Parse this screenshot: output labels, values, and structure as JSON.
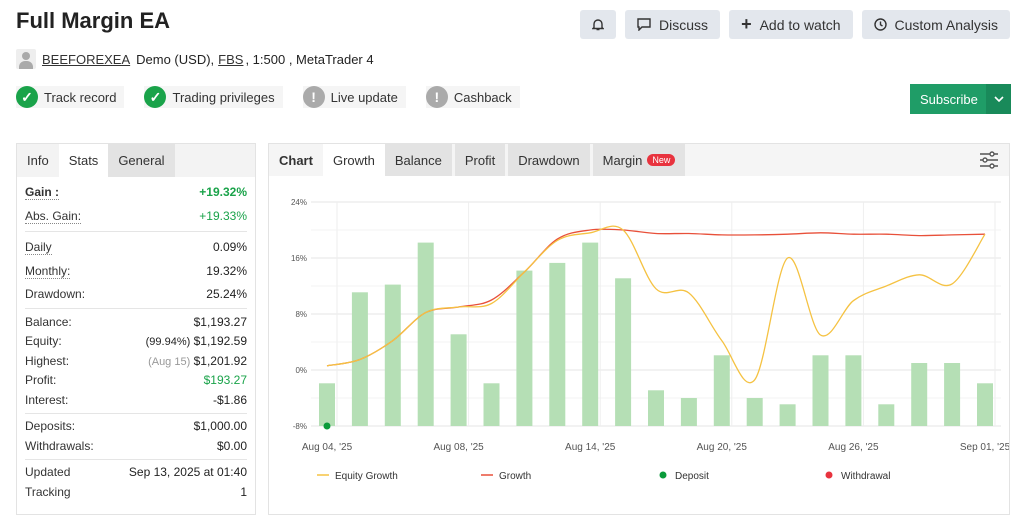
{
  "header": {
    "title": "Full Margin EA",
    "user": "BEEFOREXEA",
    "account_prefix": "Demo (USD),",
    "broker": "FBS",
    "account_suffix": ", 1:500 , MetaTrader 4"
  },
  "badges": [
    {
      "label": "Track record",
      "status": "ok"
    },
    {
      "label": "Trading privileges",
      "status": "ok"
    },
    {
      "label": "Live update",
      "status": "warn"
    },
    {
      "label": "Cashback",
      "status": "warn"
    }
  ],
  "buttons": {
    "discuss": "Discuss",
    "watch": "Add to watch",
    "analysis": "Custom Analysis",
    "subscribe": "Subscribe"
  },
  "left_tabs": [
    "Info",
    "Stats",
    "General"
  ],
  "stats": {
    "gain": {
      "label": "Gain :",
      "value": "+19.32%"
    },
    "abs_gain": {
      "label": "Abs. Gain:",
      "value": "+19.33%"
    },
    "daily": {
      "label": "Daily",
      "value": "0.09%"
    },
    "monthly": {
      "label": "Monthly:",
      "value": "19.32%"
    },
    "drawdown": {
      "label": "Drawdown:",
      "value": "25.24%"
    },
    "balance": {
      "label": "Balance:",
      "value": "$1,193.27"
    },
    "equity": {
      "label": "Equity:",
      "note": "(99.94%)",
      "value": "$1,192.59"
    },
    "highest": {
      "label": "Highest:",
      "note": "(Aug 15)",
      "value": "$1,201.92"
    },
    "profit": {
      "label": "Profit:",
      "value": "$193.27"
    },
    "interest": {
      "label": "Interest:",
      "value": "-$1.86"
    },
    "deposits": {
      "label": "Deposits:",
      "value": "$1,000.00"
    },
    "withdrawals": {
      "label": "Withdrawals:",
      "value": "$0.00"
    },
    "updated": {
      "label": "Updated",
      "value": "Sep 13, 2025 at 01:40"
    },
    "tracking": {
      "label": "Tracking",
      "value": "1"
    }
  },
  "chart_tabs": [
    "Chart",
    "Growth",
    "Balance",
    "Profit",
    "Drawdown",
    "Margin"
  ],
  "chart_tab_badge": "New",
  "colors": {
    "accent": "#1f9d67",
    "positive": "#1aa34a",
    "equity": "#f5c242",
    "growth": "#e8503a",
    "bars": "#b5dfb5",
    "deposit": "#0a9b3a",
    "withdrawal": "#e8333e"
  },
  "chart_data": {
    "type": "bar+line",
    "categories": [
      "Aug 04",
      "Aug 05",
      "Aug 06",
      "Aug 07",
      "Aug 08",
      "Aug 11",
      "Aug 12",
      "Aug 13",
      "Aug 14",
      "Aug 15",
      "Aug 18",
      "Aug 19",
      "Aug 20",
      "Aug 21",
      "Aug 22",
      "Aug 25",
      "Aug 26",
      "Aug 27",
      "Aug 28",
      "Aug 29",
      "Sep 01"
    ],
    "x_tick_labels": [
      "Aug 04, '25",
      "Aug 08, '25",
      "Aug 14, '25",
      "Aug 20, '25",
      "Aug 26, '25",
      "Sep 01, '25"
    ],
    "x_tick_index": [
      0,
      4,
      8,
      12,
      16,
      20
    ],
    "y_ticks": [
      "24%",
      "16%",
      "8%",
      "0%",
      "-8%"
    ],
    "ylim": [
      -8,
      24
    ],
    "grid": true,
    "bars": [
      -1.9,
      11.1,
      12.2,
      18.2,
      5.1,
      -1.9,
      14.2,
      15.3,
      18.2,
      13.1,
      -2.9,
      -4.0,
      2.1,
      -4.0,
      -4.9,
      2.1,
      2.1,
      -4.9,
      1.0,
      1.0,
      -1.9
    ],
    "series": [
      {
        "name": "Equity Growth",
        "values": [
          0.6,
          1.5,
          4.2,
          8.2,
          9.0,
          9.5,
          14.0,
          18.5,
          19.6,
          20.0,
          11.6,
          11.0,
          4.2,
          -1.4,
          16.0,
          5.0,
          9.9,
          12.0,
          13.6,
          12.3,
          19.4
        ]
      },
      {
        "name": "Growth",
        "values": [
          0.6,
          1.5,
          4.2,
          8.2,
          9.0,
          10.0,
          14.0,
          18.7,
          20.0,
          20.0,
          19.5,
          19.5,
          19.3,
          19.3,
          19.4,
          19.6,
          19.4,
          19.4,
          19.2,
          19.3,
          19.4
        ]
      }
    ],
    "deposit_index": 0,
    "legend": [
      "Equity Growth",
      "Growth",
      "Deposit",
      "Withdrawal"
    ],
    "legend_position": "bottom"
  }
}
